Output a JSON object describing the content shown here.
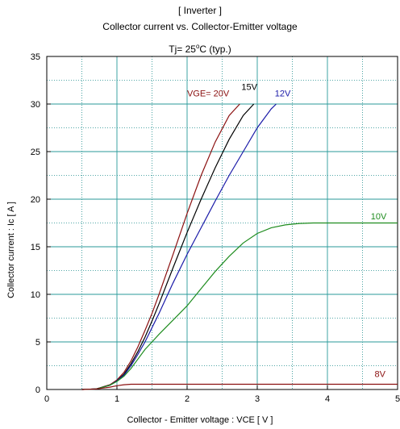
{
  "chart_data": {
    "type": "line",
    "title": "[ Inverter ]",
    "subtitle": "Collector current  vs.  Collector-Emitter voltage",
    "condition_prefix": "Tj= 25",
    "condition_degree": "o",
    "condition_suffix": "C  (typ.)",
    "xlabel": "Collector - Emitter voltage  :  VCE  [ V ]",
    "ylabel": "Collector current  :  Ic  [ A ]",
    "xlim": [
      0,
      5
    ],
    "ylim": [
      0,
      35
    ],
    "xticks": [
      0,
      1,
      2,
      3,
      4,
      5
    ],
    "yticks": [
      0,
      5,
      10,
      15,
      20,
      25,
      30,
      35
    ],
    "grid": true,
    "series": [
      {
        "name": "VGE= 20V",
        "color": "#8b1010",
        "x": [
          0.5,
          0.7,
          0.9,
          1.0,
          1.1,
          1.2,
          1.3,
          1.4,
          1.5,
          1.6,
          1.8,
          2.0,
          2.2,
          2.4,
          2.6,
          2.75
        ],
        "y": [
          0,
          0.05,
          0.5,
          1.0,
          1.8,
          3.0,
          4.5,
          6.2,
          8.0,
          10.0,
          14.2,
          18.5,
          22.5,
          26.0,
          28.8,
          30.0
        ]
      },
      {
        "name": "15V",
        "color": "#000000",
        "x": [
          0.5,
          0.7,
          0.9,
          1.0,
          1.1,
          1.2,
          1.3,
          1.4,
          1.5,
          1.6,
          1.8,
          2.0,
          2.2,
          2.4,
          2.6,
          2.8,
          2.95
        ],
        "y": [
          0,
          0.05,
          0.45,
          0.9,
          1.6,
          2.7,
          4.0,
          5.5,
          7.2,
          9.0,
          12.8,
          16.5,
          20.0,
          23.3,
          26.3,
          28.8,
          30.0
        ]
      },
      {
        "name": "12V",
        "color": "#1a1aa8",
        "x": [
          0.5,
          0.7,
          0.9,
          1.0,
          1.1,
          1.2,
          1.3,
          1.4,
          1.5,
          1.6,
          1.8,
          2.0,
          2.2,
          2.4,
          2.6,
          2.8,
          3.0,
          3.2,
          3.27
        ],
        "y": [
          0,
          0.05,
          0.45,
          0.9,
          1.5,
          2.5,
          3.7,
          5.0,
          6.5,
          8.0,
          11.2,
          14.2,
          17.0,
          19.8,
          22.5,
          25.0,
          27.5,
          29.5,
          30.0
        ]
      },
      {
        "name": "10V",
        "color": "#1e8c1e",
        "x": [
          0.5,
          0.7,
          0.9,
          1.0,
          1.1,
          1.2,
          1.3,
          1.4,
          1.5,
          1.6,
          1.8,
          2.0,
          2.2,
          2.4,
          2.6,
          2.8,
          3.0,
          3.2,
          3.4,
          3.6,
          3.8,
          4.0,
          4.5,
          5.0
        ],
        "y": [
          0,
          0.05,
          0.45,
          0.85,
          1.4,
          2.2,
          3.2,
          4.2,
          5.0,
          5.8,
          7.3,
          8.8,
          10.6,
          12.4,
          14.0,
          15.4,
          16.4,
          17.0,
          17.3,
          17.45,
          17.5,
          17.5,
          17.5,
          17.5
        ]
      },
      {
        "name": "8V",
        "color": "#8b1010",
        "x": [
          0.5,
          0.7,
          0.9,
          1.0,
          1.1,
          1.2,
          1.5,
          2.0,
          3.0,
          4.0,
          5.0
        ],
        "y": [
          0,
          0.05,
          0.25,
          0.4,
          0.5,
          0.55,
          0.55,
          0.55,
          0.55,
          0.55,
          0.55
        ]
      }
    ]
  }
}
